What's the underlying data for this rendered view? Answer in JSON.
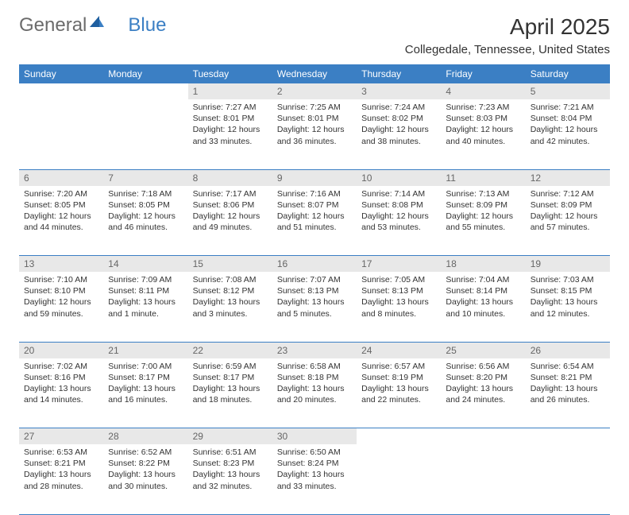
{
  "logo": {
    "text1": "General",
    "text2": "Blue"
  },
  "title": "April 2025",
  "location": "Collegedale, Tennessee, United States",
  "day_headers": [
    "Sunday",
    "Monday",
    "Tuesday",
    "Wednesday",
    "Thursday",
    "Friday",
    "Saturday"
  ],
  "colors": {
    "header_bg": "#3b7fc4",
    "header_text": "#ffffff",
    "daynum_bg": "#e8e8e8",
    "daynum_text": "#666666",
    "cell_text": "#333333",
    "border": "#3b7fc4"
  },
  "weeks": [
    [
      null,
      null,
      {
        "n": "1",
        "sr": "Sunrise: 7:27 AM",
        "ss": "Sunset: 8:01 PM",
        "dl": "Daylight: 12 hours and 33 minutes."
      },
      {
        "n": "2",
        "sr": "Sunrise: 7:25 AM",
        "ss": "Sunset: 8:01 PM",
        "dl": "Daylight: 12 hours and 36 minutes."
      },
      {
        "n": "3",
        "sr": "Sunrise: 7:24 AM",
        "ss": "Sunset: 8:02 PM",
        "dl": "Daylight: 12 hours and 38 minutes."
      },
      {
        "n": "4",
        "sr": "Sunrise: 7:23 AM",
        "ss": "Sunset: 8:03 PM",
        "dl": "Daylight: 12 hours and 40 minutes."
      },
      {
        "n": "5",
        "sr": "Sunrise: 7:21 AM",
        "ss": "Sunset: 8:04 PM",
        "dl": "Daylight: 12 hours and 42 minutes."
      }
    ],
    [
      {
        "n": "6",
        "sr": "Sunrise: 7:20 AM",
        "ss": "Sunset: 8:05 PM",
        "dl": "Daylight: 12 hours and 44 minutes."
      },
      {
        "n": "7",
        "sr": "Sunrise: 7:18 AM",
        "ss": "Sunset: 8:05 PM",
        "dl": "Daylight: 12 hours and 46 minutes."
      },
      {
        "n": "8",
        "sr": "Sunrise: 7:17 AM",
        "ss": "Sunset: 8:06 PM",
        "dl": "Daylight: 12 hours and 49 minutes."
      },
      {
        "n": "9",
        "sr": "Sunrise: 7:16 AM",
        "ss": "Sunset: 8:07 PM",
        "dl": "Daylight: 12 hours and 51 minutes."
      },
      {
        "n": "10",
        "sr": "Sunrise: 7:14 AM",
        "ss": "Sunset: 8:08 PM",
        "dl": "Daylight: 12 hours and 53 minutes."
      },
      {
        "n": "11",
        "sr": "Sunrise: 7:13 AM",
        "ss": "Sunset: 8:09 PM",
        "dl": "Daylight: 12 hours and 55 minutes."
      },
      {
        "n": "12",
        "sr": "Sunrise: 7:12 AM",
        "ss": "Sunset: 8:09 PM",
        "dl": "Daylight: 12 hours and 57 minutes."
      }
    ],
    [
      {
        "n": "13",
        "sr": "Sunrise: 7:10 AM",
        "ss": "Sunset: 8:10 PM",
        "dl": "Daylight: 12 hours and 59 minutes."
      },
      {
        "n": "14",
        "sr": "Sunrise: 7:09 AM",
        "ss": "Sunset: 8:11 PM",
        "dl": "Daylight: 13 hours and 1 minute."
      },
      {
        "n": "15",
        "sr": "Sunrise: 7:08 AM",
        "ss": "Sunset: 8:12 PM",
        "dl": "Daylight: 13 hours and 3 minutes."
      },
      {
        "n": "16",
        "sr": "Sunrise: 7:07 AM",
        "ss": "Sunset: 8:13 PM",
        "dl": "Daylight: 13 hours and 5 minutes."
      },
      {
        "n": "17",
        "sr": "Sunrise: 7:05 AM",
        "ss": "Sunset: 8:13 PM",
        "dl": "Daylight: 13 hours and 8 minutes."
      },
      {
        "n": "18",
        "sr": "Sunrise: 7:04 AM",
        "ss": "Sunset: 8:14 PM",
        "dl": "Daylight: 13 hours and 10 minutes."
      },
      {
        "n": "19",
        "sr": "Sunrise: 7:03 AM",
        "ss": "Sunset: 8:15 PM",
        "dl": "Daylight: 13 hours and 12 minutes."
      }
    ],
    [
      {
        "n": "20",
        "sr": "Sunrise: 7:02 AM",
        "ss": "Sunset: 8:16 PM",
        "dl": "Daylight: 13 hours and 14 minutes."
      },
      {
        "n": "21",
        "sr": "Sunrise: 7:00 AM",
        "ss": "Sunset: 8:17 PM",
        "dl": "Daylight: 13 hours and 16 minutes."
      },
      {
        "n": "22",
        "sr": "Sunrise: 6:59 AM",
        "ss": "Sunset: 8:17 PM",
        "dl": "Daylight: 13 hours and 18 minutes."
      },
      {
        "n": "23",
        "sr": "Sunrise: 6:58 AM",
        "ss": "Sunset: 8:18 PM",
        "dl": "Daylight: 13 hours and 20 minutes."
      },
      {
        "n": "24",
        "sr": "Sunrise: 6:57 AM",
        "ss": "Sunset: 8:19 PM",
        "dl": "Daylight: 13 hours and 22 minutes."
      },
      {
        "n": "25",
        "sr": "Sunrise: 6:56 AM",
        "ss": "Sunset: 8:20 PM",
        "dl": "Daylight: 13 hours and 24 minutes."
      },
      {
        "n": "26",
        "sr": "Sunrise: 6:54 AM",
        "ss": "Sunset: 8:21 PM",
        "dl": "Daylight: 13 hours and 26 minutes."
      }
    ],
    [
      {
        "n": "27",
        "sr": "Sunrise: 6:53 AM",
        "ss": "Sunset: 8:21 PM",
        "dl": "Daylight: 13 hours and 28 minutes."
      },
      {
        "n": "28",
        "sr": "Sunrise: 6:52 AM",
        "ss": "Sunset: 8:22 PM",
        "dl": "Daylight: 13 hours and 30 minutes."
      },
      {
        "n": "29",
        "sr": "Sunrise: 6:51 AM",
        "ss": "Sunset: 8:23 PM",
        "dl": "Daylight: 13 hours and 32 minutes."
      },
      {
        "n": "30",
        "sr": "Sunrise: 6:50 AM",
        "ss": "Sunset: 8:24 PM",
        "dl": "Daylight: 13 hours and 33 minutes."
      },
      null,
      null,
      null
    ]
  ]
}
